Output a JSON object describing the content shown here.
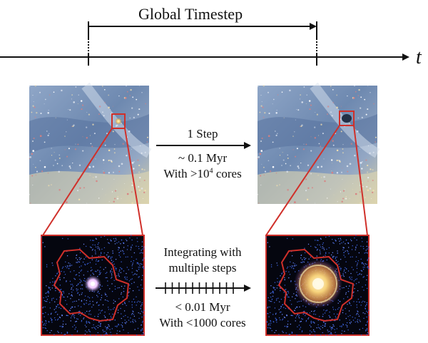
{
  "timeline": {
    "label": "Global Timestep",
    "axis_label": "t"
  },
  "arrows": {
    "top": {
      "line1": "1 Step",
      "line2": "~ 0.1 Myr",
      "line3_prefix": "With >10",
      "line3_sup": "4",
      "line3_suffix": " cores"
    },
    "bottom": {
      "line1": "Integrating with",
      "line2": "multiple steps",
      "line3": "< 0.01 Myr",
      "line4": "With <1000 cores"
    }
  },
  "colors": {
    "highlight": "#d0302a",
    "arrow": "#111111",
    "galaxy_bg": "#7f97b8",
    "zoom_bg": "#050510",
    "particles": "#3b63e0"
  },
  "panels": {
    "left_top": "galaxy-before",
    "right_top": "galaxy-after",
    "left_bottom": "zoom-before",
    "right_bottom": "zoom-after-supernova"
  }
}
